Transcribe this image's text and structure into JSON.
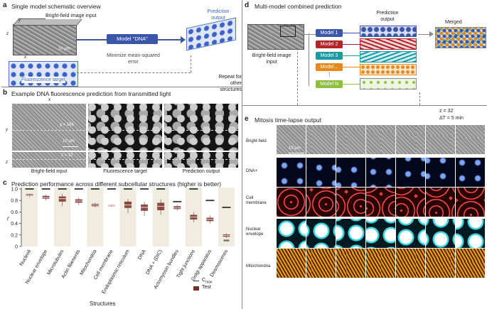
{
  "panel_a": {
    "letter": "a",
    "title": "Single model schematic overview",
    "input_label": "Bright-field image input",
    "fluor_label": "Fluorescence target",
    "model_label": "Model \"DNA\"",
    "prediction_label": "Prediction output",
    "loss_label": "Minimize mean-squared error",
    "repeat_label": "Repeat for other structures",
    "axis_y": "y",
    "axis_z": "z",
    "axis_x": "x",
    "scale": "10 μm"
  },
  "panel_b": {
    "letter": "b",
    "title": "Example DNA fluorescence prediction from transmitted light",
    "axis_x": "x",
    "axis_y": "y",
    "axis_z": "z",
    "y_readout": "y = 168",
    "z_readout": "z = 32",
    "scale": "10 μm",
    "captions": [
      "Bright-field input",
      "Fluorescence target",
      "Prediction output"
    ]
  },
  "panel_c": {
    "letter": "c",
    "title": "Prediction performance across different subcellular structures (higher is better)",
    "legend": {
      "cmax": "C",
      "cmax_sub": "max",
      "test": "Test"
    },
    "colors": {
      "test": "#7a2e26",
      "band": "#f1ece0",
      "cmax": "#333333"
    }
  },
  "chart_data": {
    "type": "box",
    "title": "Prediction performance across different subcellular structures (higher is better)",
    "xlabel": "Structures",
    "ylabel": "r",
    "ylim": [
      0,
      1.0
    ],
    "yticks": [
      "0",
      "0.2",
      "0.4",
      "0.6",
      "0.8",
      "1.0"
    ],
    "ytick_values": [
      0,
      0.2,
      0.4,
      0.6,
      0.8,
      1.0
    ],
    "categories": [
      "Nucleoli",
      "Nuclear envelope",
      "Microtubules",
      "Actin filaments",
      "Mitochondria",
      "Cell membrane",
      "Endoplasmic reticulum",
      "DNA",
      "DNA + (DIC)",
      "Actomyosin bundles",
      "Tight junctions",
      "Golgi apparatus",
      "Desmosomes"
    ],
    "cmax": [
      1.0,
      1.0,
      1.0,
      1.0,
      1.0,
      1.0,
      1.0,
      1.0,
      1.0,
      0.78,
      1.0,
      0.8,
      0.68
    ],
    "series": [
      {
        "name": "Test",
        "median": [
          0.89,
          0.85,
          0.83,
          0.79,
          0.72,
          0.71,
          0.72,
          0.68,
          0.7,
          0.67,
          0.51,
          0.47,
          0.19
        ],
        "q1": [
          0.88,
          0.83,
          0.78,
          0.76,
          0.7,
          0.7,
          0.67,
          0.62,
          0.63,
          0.65,
          0.47,
          0.44,
          0.17
        ],
        "q3": [
          0.91,
          0.88,
          0.87,
          0.82,
          0.74,
          0.72,
          0.78,
          0.73,
          0.76,
          0.7,
          0.55,
          0.5,
          0.21
        ],
        "min": [
          0.86,
          0.8,
          0.7,
          0.72,
          0.68,
          0.69,
          0.58,
          0.53,
          0.55,
          0.62,
          0.42,
          0.4,
          0.15
        ],
        "max": [
          0.92,
          0.9,
          0.92,
          0.85,
          0.76,
          0.73,
          0.83,
          0.78,
          0.82,
          0.72,
          0.6,
          0.54,
          0.23
        ]
      }
    ],
    "desmosomes_extra": 0.1
  },
  "panel_d": {
    "letter": "d",
    "title": "Multi-model combined prediction",
    "input_label": "Bright-field image input",
    "prediction_label": "Prediction output",
    "merged_label": "Merged",
    "models": [
      {
        "label": "Model 1",
        "color": "#3b55a8"
      },
      {
        "label": "Model 2",
        "color": "#b2232a"
      },
      {
        "label": "Model 3",
        "color": "#1b9aa5"
      },
      {
        "label": "Model...",
        "color": "#e5891c"
      },
      {
        "label": "Model N",
        "color": "#8dbf3a"
      }
    ],
    "dots": "⋮"
  },
  "panel_e": {
    "letter": "e",
    "title": "Mitosis time-lapse output",
    "z_readout": "z = 32",
    "dt_readout": "ΔT = 5 min",
    "scale": "10 μm",
    "rows": [
      "Bright-field",
      "DNA+",
      "Cell membrane",
      "Nuclear envelope",
      "Mitochondria"
    ]
  }
}
